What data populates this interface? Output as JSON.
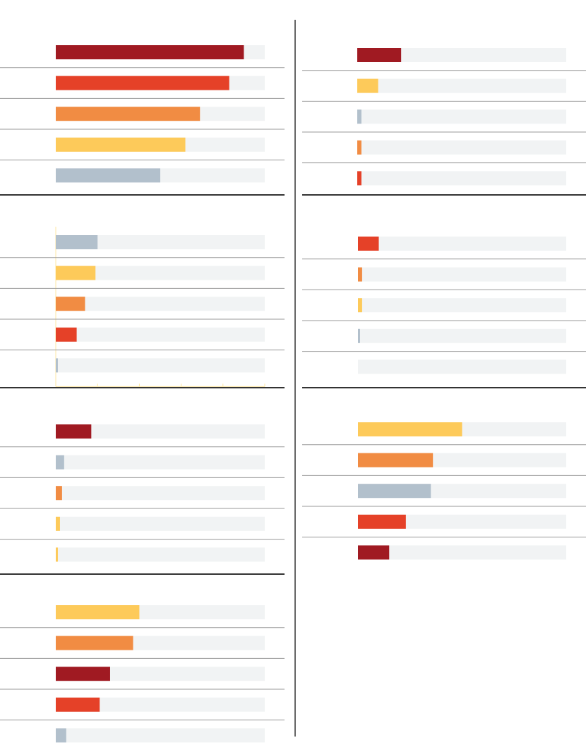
{
  "colors": {
    "track": "#f1f3f4",
    "rule_thin": "#999999",
    "rule_thick": "#333333",
    "divider": "#333333",
    "guide": "#fde7a3"
  },
  "chart_data": [
    {
      "type": "bar",
      "orientation": "horizontal",
      "xlim": [
        0,
        100
      ],
      "grid": false,
      "series": [
        {
          "values": [
            90,
            83,
            69,
            62,
            50
          ]
        }
      ],
      "bar_colors": [
        "#a01a22",
        "#e54128",
        "#f18c43",
        "#fdca5a",
        "#b2c0cc"
      ]
    },
    {
      "type": "bar",
      "orientation": "horizontal",
      "xlim": [
        0,
        100
      ],
      "grid": true,
      "series": [
        {
          "values": [
            20,
            19,
            14,
            10,
            1
          ]
        }
      ],
      "bar_colors": [
        "#b2c0cc",
        "#fdca5a",
        "#f18c43",
        "#e54128",
        "#b2c0cc"
      ]
    },
    {
      "type": "bar",
      "orientation": "horizontal",
      "xlim": [
        0,
        100
      ],
      "grid": false,
      "series": [
        {
          "values": [
            17,
            4,
            3,
            2,
            1
          ]
        }
      ],
      "bar_colors": [
        "#a01a22",
        "#b2c0cc",
        "#f18c43",
        "#fdca5a",
        "#fdca5a"
      ]
    },
    {
      "type": "bar",
      "orientation": "horizontal",
      "xlim": [
        0,
        100
      ],
      "grid": false,
      "series": [
        {
          "values": [
            40,
            37,
            26,
            21,
            5
          ]
        }
      ],
      "bar_colors": [
        "#fdca5a",
        "#f18c43",
        "#a01a22",
        "#e54128",
        "#b2c0cc"
      ]
    },
    {
      "type": "bar",
      "orientation": "horizontal",
      "xlim": [
        0,
        100
      ],
      "grid": false,
      "series": [
        {
          "values": [
            21,
            10,
            2,
            2,
            2
          ]
        }
      ],
      "bar_colors": [
        "#a01a22",
        "#fdca5a",
        "#b2c0cc",
        "#f18c43",
        "#e54128"
      ]
    },
    {
      "type": "bar",
      "orientation": "horizontal",
      "xlim": [
        0,
        100
      ],
      "grid": false,
      "series": [
        {
          "values": [
            10,
            2,
            2,
            1,
            0
          ]
        }
      ],
      "bar_colors": [
        "#e54128",
        "#f18c43",
        "#fdca5a",
        "#b2c0cc",
        "#b2c0cc"
      ]
    },
    {
      "type": "bar",
      "orientation": "horizontal",
      "xlim": [
        0,
        100
      ],
      "grid": false,
      "series": [
        {
          "values": [
            50,
            36,
            35,
            23,
            15
          ]
        }
      ],
      "bar_colors": [
        "#fdca5a",
        "#f18c43",
        "#b2c0cc",
        "#e54128",
        "#a01a22"
      ]
    }
  ]
}
